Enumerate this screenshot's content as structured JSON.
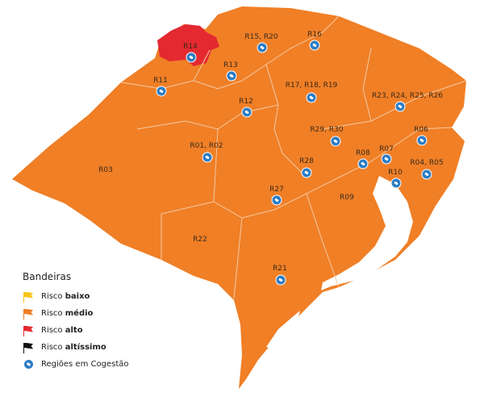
{
  "colors": {
    "medio": "#f07f26",
    "alto": "#e42931",
    "baixo": "#f7c518",
    "altissimo": "#111111",
    "cogestao": "#2d7dc4"
  },
  "regions": {
    "r14": "R14",
    "r15_20": "R15, R20",
    "r16": "R16",
    "r13": "R13",
    "r11": "R11",
    "r12": "R12",
    "r17_18_19": "R17, R18, R19",
    "r23_26": "R23, R24, R25, R26",
    "r29_30": "R29, R30",
    "r06": "R06",
    "r01_02": "R01, R02",
    "r08": "R08",
    "r07": "R07",
    "r04_05": "R04, R05",
    "r03": "R03",
    "r28": "R28",
    "r10": "R10",
    "r27": "R27",
    "r09": "R09",
    "r22": "R22",
    "r21": "R21"
  },
  "legend": {
    "title": "Bandeiras",
    "items": [
      {
        "prefix": "Risco ",
        "bold": "baixo",
        "icon": "yellow-flag-icon"
      },
      {
        "prefix": "Risco ",
        "bold": "médio",
        "icon": "orange-flag-icon"
      },
      {
        "prefix": "Risco ",
        "bold": "alto",
        "icon": "red-flag-icon"
      },
      {
        "prefix": "Risco ",
        "bold": "altíssimo",
        "icon": "black-flag-icon"
      }
    ],
    "cogestao": "Regiões em Cogestão"
  }
}
